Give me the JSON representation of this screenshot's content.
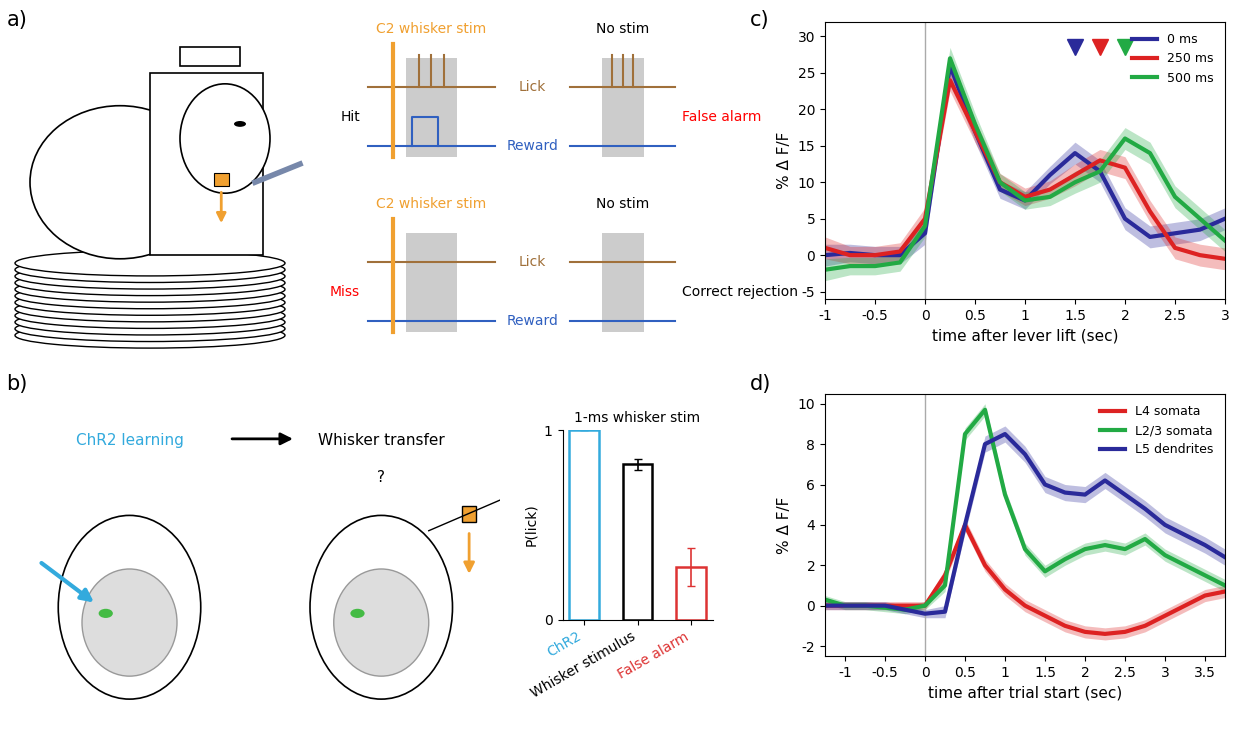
{
  "panel_a": {
    "panel_label": "a)",
    "rows": [
      {
        "trials": [
          {
            "header": "C2 whisker stim",
            "stim": true,
            "outcome": "Hit",
            "color": "black",
            "licks": true,
            "reward": true
          },
          {
            "header": "No stim",
            "stim": false,
            "outcome": "False alarm",
            "color": "red",
            "licks": true,
            "reward": false
          }
        ],
        "lick_label": "Lick",
        "reward_label": "Reward"
      },
      {
        "trials": [
          {
            "header": "C2 whisker stim",
            "stim": true,
            "outcome": "Miss",
            "color": "red",
            "licks": false,
            "reward": false
          },
          {
            "header": "No stim",
            "stim": false,
            "outcome": "Correct rejection",
            "color": "black",
            "licks": false,
            "reward": false
          }
        ],
        "lick_label": "Lick",
        "reward_label": "Reward"
      }
    ]
  },
  "panel_b": {
    "panel_label": "b)",
    "steps": [
      "ChR2 learning",
      "Whisker transfer"
    ],
    "question": "?"
  },
  "chart_data": [
    {
      "type": "bar",
      "panel_label": "b)",
      "title": "1-ms whisker stim",
      "y_label": "P(lick)",
      "categories": [
        "ChR2",
        "Whisker stimulus",
        "False alarm"
      ],
      "values": [
        1,
        0.82,
        0.28
      ],
      "errors": [
        0,
        0.03,
        0.1
      ],
      "colors": [
        "#33aadd",
        "black",
        "#dd3333"
      ],
      "ylim": [
        0,
        1
      ],
      "yticks": [
        0,
        1
      ]
    },
    {
      "type": "line",
      "panel_label": "c)",
      "x_label": "time after lever lift (sec)",
      "y_label": "% Δ F/F",
      "x": [
        -1,
        -0.75,
        -0.5,
        -0.25,
        0,
        0.25,
        0.5,
        0.75,
        1,
        1.25,
        1.5,
        1.75,
        2,
        2.25,
        2.5,
        2.75,
        3
      ],
      "vline": 0,
      "series": [
        {
          "name": "0 ms",
          "color": "#2a2a9a",
          "values": [
            0,
            0.3,
            0,
            0,
            3,
            26,
            17,
            9,
            7.5,
            11,
            14,
            11.5,
            5,
            2.5,
            3,
            3.5,
            5
          ],
          "errors": [
            1.5,
            1.2,
            1.2,
            1.2,
            1.5,
            1.5,
            1.5,
            1.2,
            1.2,
            1.2,
            1.5,
            1.5,
            1.5,
            1.5,
            1.5,
            1.5,
            1.5
          ],
          "arrowhead_x": 1.5,
          "arrowhead_y": 28.5
        },
        {
          "name": "250 ms",
          "color": "#dd2222",
          "values": [
            1,
            0,
            0,
            0.5,
            5,
            24,
            17,
            10,
            8,
            9,
            11,
            13,
            12,
            6,
            1,
            0,
            -0.5
          ],
          "errors": [
            1.5,
            1.2,
            1.2,
            1.2,
            1.5,
            1.5,
            1.5,
            1.2,
            1.2,
            1.2,
            1.5,
            1.5,
            1.5,
            1.5,
            1.5,
            1.5,
            1.5
          ],
          "arrowhead_x": 1.75,
          "arrowhead_y": 28.5
        },
        {
          "name": "500 ms",
          "color": "#22aa44",
          "values": [
            -2,
            -1.5,
            -1.5,
            -1,
            4,
            27,
            18,
            10,
            7.5,
            8,
            10,
            11.5,
            16,
            14,
            8,
            5,
            2
          ],
          "errors": [
            1.5,
            1.2,
            1.2,
            1.2,
            1.5,
            1.5,
            1.5,
            1.2,
            1.2,
            1.2,
            1.5,
            1.5,
            1.5,
            1.5,
            1.5,
            1.5,
            1.5
          ],
          "arrowhead_x": 2,
          "arrowhead_y": 28.5
        }
      ],
      "xlim": [
        -1,
        3
      ],
      "xticks": [
        -1,
        -0.5,
        0,
        0.5,
        1,
        1.5,
        2,
        2.5,
        3
      ],
      "ylim": [
        -6,
        32
      ],
      "yticks": [
        -5,
        0,
        5,
        10,
        15,
        20,
        25,
        30
      ],
      "legend": "upper right"
    },
    {
      "type": "line",
      "panel_label": "d)",
      "x_label": "time after trial start (sec)",
      "y_label": "% Δ F/F",
      "x": [
        -1.25,
        -1,
        -0.75,
        -0.5,
        -0.25,
        0,
        0.25,
        0.5,
        0.75,
        1,
        1.25,
        1.5,
        1.75,
        2,
        2.25,
        2.5,
        2.75,
        3,
        3.25,
        3.5,
        3.75
      ],
      "vline": 0,
      "series": [
        {
          "name": "L4 somata",
          "color": "#dd2222",
          "values": [
            0,
            0,
            0,
            0,
            0,
            0,
            1.5,
            4,
            2,
            0.8,
            0,
            -0.5,
            -1,
            -1.3,
            -1.4,
            -1.3,
            -1,
            -0.5,
            0,
            0.5,
            0.7
          ],
          "errors": [
            0.2,
            0.2,
            0.2,
            0.2,
            0.2,
            0.2,
            0.3,
            0.3,
            0.3,
            0.3,
            0.3,
            0.3,
            0.3,
            0.3,
            0.3,
            0.3,
            0.3,
            0.3,
            0.3,
            0.3,
            0.3
          ]
        },
        {
          "name": "L2/3 somata",
          "color": "#22aa44",
          "values": [
            0.3,
            0,
            0,
            -0.1,
            -0.2,
            0,
            1,
            8.5,
            9.7,
            5.5,
            2.8,
            1.7,
            2.3,
            2.8,
            3,
            2.8,
            3.3,
            2.5,
            2,
            1.5,
            1
          ],
          "errors": [
            0.2,
            0.2,
            0.2,
            0.2,
            0.2,
            0.2,
            0.3,
            0.3,
            0.3,
            0.3,
            0.3,
            0.3,
            0.3,
            0.3,
            0.3,
            0.3,
            0.3,
            0.3,
            0.3,
            0.3,
            0.3
          ]
        },
        {
          "name": "L5 dendrites",
          "color": "#2a2a9a",
          "values": [
            0,
            0,
            0,
            0,
            -0.2,
            -0.4,
            -0.3,
            4,
            8,
            8.5,
            7.5,
            6,
            5.6,
            5.5,
            6.2,
            5.5,
            4.8,
            4,
            3.5,
            3,
            2.4
          ],
          "errors": [
            0.2,
            0.2,
            0.2,
            0.2,
            0.2,
            0.2,
            0.3,
            0.4,
            0.4,
            0.4,
            0.4,
            0.4,
            0.4,
            0.4,
            0.4,
            0.4,
            0.4,
            0.4,
            0.4,
            0.4,
            0.4
          ]
        }
      ],
      "xlim": [
        -1.25,
        3.75
      ],
      "xticks": [
        -1,
        -0.5,
        0,
        0.5,
        1,
        1.5,
        2,
        2.5,
        3,
        3.5
      ],
      "ylim": [
        -2.5,
        10.5
      ],
      "yticks": [
        -2,
        0,
        2,
        4,
        6,
        8,
        10
      ],
      "legend": "upper right"
    }
  ]
}
